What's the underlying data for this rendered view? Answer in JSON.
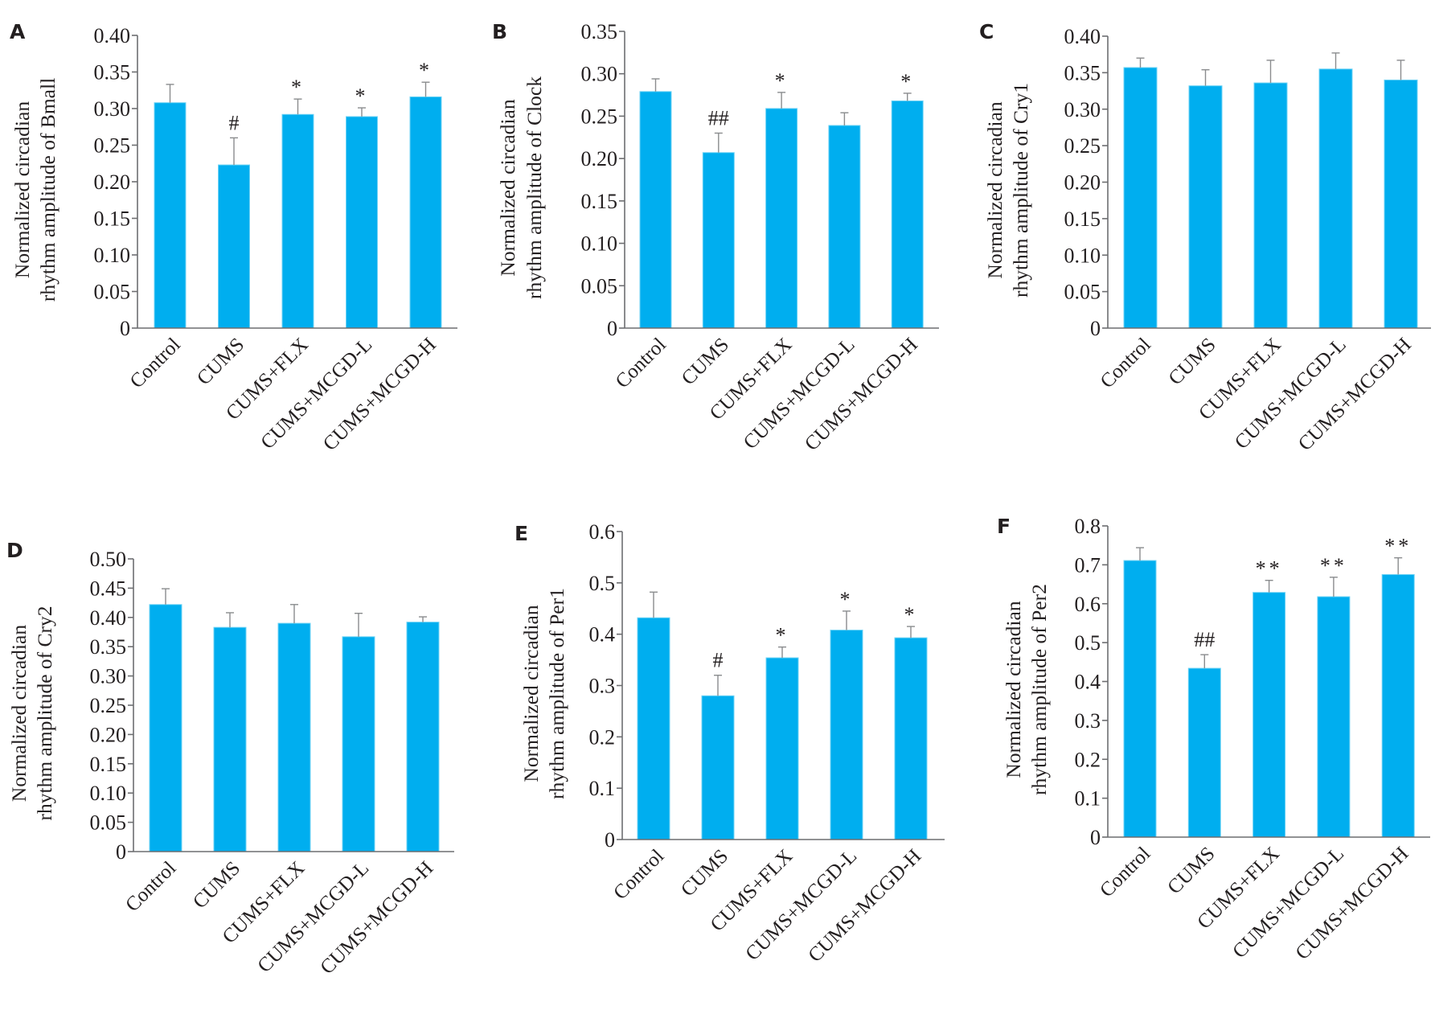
{
  "figure": {
    "bar_color": "#00aeef",
    "text_color": "#231f20"
  },
  "chart_data": [
    {
      "panel": "A",
      "type": "bar",
      "title": "",
      "xlabel": "",
      "ylabel": [
        "Normalized circadian",
        "rhythm amplitude of Bmall"
      ],
      "categories": [
        "Control",
        "CUMS",
        "CUMS+FLX",
        "CUMS+MCGD-L",
        "CUMS+MCGD-H"
      ],
      "values": [
        0.308,
        0.223,
        0.292,
        0.289,
        0.316
      ],
      "error_upper": [
        0.333,
        0.26,
        0.313,
        0.301,
        0.336
      ],
      "annotations": [
        "",
        "#",
        "*",
        "*",
        "*"
      ],
      "ylim": [
        0,
        0.4
      ],
      "yticks": [
        0,
        0.05,
        0.1,
        0.15,
        0.2,
        0.25,
        0.3,
        0.35,
        0.4
      ],
      "ytick_labels": [
        "0",
        "0.05",
        "0.10",
        "0.15",
        "0.20",
        "0.25",
        "0.30",
        "0.35",
        "0.40"
      ],
      "grid": false
    },
    {
      "panel": "B",
      "type": "bar",
      "title": "",
      "xlabel": "",
      "ylabel": [
        "Normalized circadian",
        "rhythm amplitude of Clock"
      ],
      "categories": [
        "Control",
        "CUMS",
        "CUMS+FLX",
        "CUMS+MCGD-L",
        "CUMS+MCGD-H"
      ],
      "values": [
        0.279,
        0.207,
        0.259,
        0.239,
        0.268
      ],
      "error_upper": [
        0.294,
        0.23,
        0.278,
        0.254,
        0.277
      ],
      "annotations": [
        "",
        "##",
        "*",
        "",
        "*"
      ],
      "ylim": [
        0,
        0.35
      ],
      "yticks": [
        0,
        0.05,
        0.1,
        0.15,
        0.2,
        0.25,
        0.3,
        0.35
      ],
      "ytick_labels": [
        "0",
        "0.05",
        "0.10",
        "0.15",
        "0.20",
        "0.25",
        "0.30",
        "0.35"
      ],
      "grid": false
    },
    {
      "panel": "C",
      "type": "bar",
      "title": "",
      "xlabel": "",
      "ylabel": [
        "Normalized circadian",
        "rhythm amplitude of Cry1"
      ],
      "categories": [
        "Control",
        "CUMS",
        "CUMS+FLX",
        "CUMS+MCGD-L",
        "CUMS+MCGD-H"
      ],
      "values": [
        0.357,
        0.332,
        0.336,
        0.355,
        0.34
      ],
      "error_upper": [
        0.37,
        0.354,
        0.367,
        0.377,
        0.367
      ],
      "annotations": [
        "",
        "",
        "",
        "",
        ""
      ],
      "ylim": [
        0,
        0.4
      ],
      "yticks": [
        0,
        0.05,
        0.1,
        0.15,
        0.2,
        0.25,
        0.3,
        0.35,
        0.4
      ],
      "ytick_labels": [
        "0",
        "0.05",
        "0.10",
        "0.15",
        "0.20",
        "0.25",
        "0.30",
        "0.35",
        "0.40"
      ],
      "grid": false
    },
    {
      "panel": "D",
      "type": "bar",
      "title": "",
      "xlabel": "",
      "ylabel": [
        "Normalized circadian",
        "rhythm amplitude of Cry2"
      ],
      "categories": [
        "Control",
        "CUMS",
        "CUMS+FLX",
        "CUMS+MCGD-L",
        "CUMS+MCGD-H"
      ],
      "values": [
        0.422,
        0.383,
        0.39,
        0.367,
        0.392
      ],
      "error_upper": [
        0.449,
        0.408,
        0.422,
        0.407,
        0.401
      ],
      "annotations": [
        "",
        "",
        "",
        "",
        ""
      ],
      "ylim": [
        0,
        0.5
      ],
      "yticks": [
        0,
        0.05,
        0.1,
        0.15,
        0.2,
        0.25,
        0.3,
        0.35,
        0.4,
        0.45,
        0.5
      ],
      "ytick_labels": [
        "0",
        "0.05",
        "0.10",
        "0.15",
        "0.20",
        "0.25",
        "0.30",
        "0.35",
        "0.40",
        "0.45",
        "0.50"
      ],
      "grid": false
    },
    {
      "panel": "E",
      "type": "bar",
      "title": "",
      "xlabel": "",
      "ylabel": [
        "Normalized circadian",
        "rhythm amplitude of Per1"
      ],
      "categories": [
        "Control",
        "CUMS",
        "CUMS+FLX",
        "CUMS+MCGD-L",
        "CUMS+MCGD-H"
      ],
      "values": [
        0.432,
        0.28,
        0.354,
        0.408,
        0.393
      ],
      "error_upper": [
        0.482,
        0.32,
        0.375,
        0.445,
        0.415
      ],
      "annotations": [
        "",
        "#",
        "*",
        "*",
        "*"
      ],
      "ylim": [
        0,
        0.6
      ],
      "yticks": [
        0,
        0.1,
        0.2,
        0.3,
        0.4,
        0.5,
        0.6
      ],
      "ytick_labels": [
        "0",
        "0.1",
        "0.2",
        "0.3",
        "0.4",
        "0.5",
        "0.6"
      ],
      "grid": false
    },
    {
      "panel": "F",
      "type": "bar",
      "title": "",
      "xlabel": "",
      "ylabel": [
        "Normalized circadian",
        "rhythm amplitude of Per2"
      ],
      "categories": [
        "Control",
        "CUMS",
        "CUMS+FLX",
        "CUMS+MCGD-L",
        "CUMS+MCGD-H"
      ],
      "values": [
        0.711,
        0.434,
        0.629,
        0.618,
        0.675
      ],
      "error_upper": [
        0.744,
        0.469,
        0.66,
        0.668,
        0.718
      ],
      "annotations": [
        "",
        "##",
        "**",
        "**",
        "**"
      ],
      "ylim": [
        0,
        0.8
      ],
      "yticks": [
        0,
        0.1,
        0.2,
        0.3,
        0.4,
        0.5,
        0.6,
        0.7,
        0.8
      ],
      "ytick_labels": [
        "0",
        "0.1",
        "0.2",
        "0.3",
        "0.4",
        "0.5",
        "0.6",
        "0.7",
        "0.8"
      ],
      "grid": false
    }
  ]
}
